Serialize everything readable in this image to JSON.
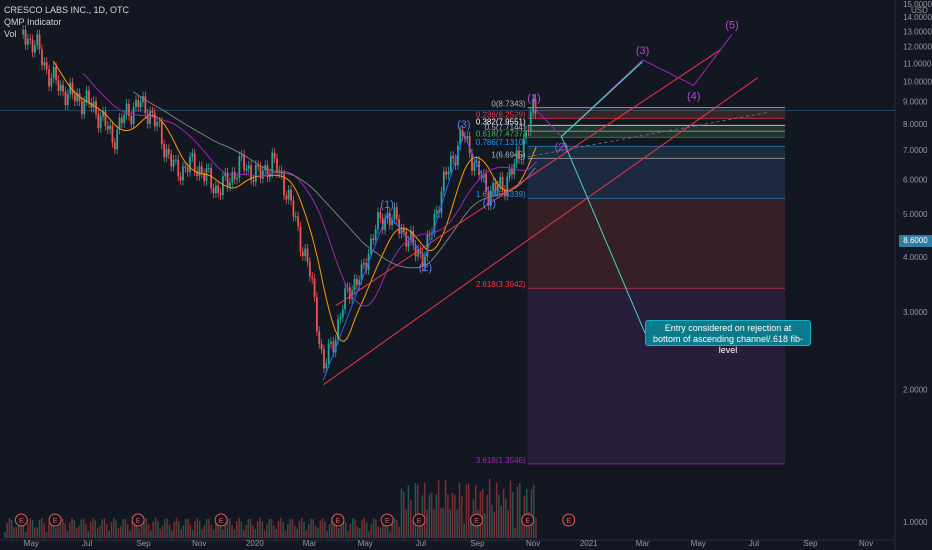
{
  "header": {
    "symbol_line": "CRESCO LABS INC., 1D, OTC",
    "indicator1": "QMP Indicator",
    "indicator2": "Vol"
  },
  "note": {
    "line1": "Entry considered on rejection at",
    "line2": "bottom of ascending channel/.618 fib-level"
  },
  "last_price": "8.6000",
  "colors": {
    "background": "#131722",
    "up_candle": "#26a69a",
    "down_candle": "#ef5350",
    "wave_blue": "#2962ff",
    "wave_purple": "#9c27b0",
    "channel_red": "#f23645",
    "arrow_teal": "#4dd0c8",
    "note_bg": "#0b7a8a"
  },
  "chart_data": {
    "type": "candlestick",
    "y_axis": {
      "scale": "log",
      "ticks": [
        "15.0000",
        "14.0000",
        "13.0000",
        "12.0000",
        "11.0000",
        "10.0000",
        "9.0000",
        "8.0000",
        "7.0000",
        "6.0000",
        "5.0000",
        "4.0000",
        "3.0000",
        "2.0000",
        "1.0000"
      ],
      "tick_values": [
        15,
        14,
        13,
        12,
        11,
        10,
        9,
        8,
        7,
        6,
        5,
        4,
        3,
        2,
        1
      ],
      "unit": "USD"
    },
    "x_axis": {
      "ticks": [
        "May",
        "Jul",
        "Sep",
        "Nov",
        "2020",
        "Mar",
        "May",
        "Jul",
        "Sep",
        "Nov",
        "2021",
        "Mar",
        "May",
        "Jul",
        "Sep",
        "Nov"
      ]
    },
    "price_path": [
      [
        "2019-04-22",
        12.8
      ],
      [
        "2019-05-06",
        12.1
      ],
      [
        "2019-05-20",
        10.4
      ],
      [
        "2019-06-03",
        9.6
      ],
      [
        "2019-06-17",
        9.2
      ],
      [
        "2019-07-01",
        9.0
      ],
      [
        "2019-07-15",
        8.4
      ],
      [
        "2019-07-29",
        7.4
      ],
      [
        "2019-08-12",
        8.4
      ],
      [
        "2019-08-26",
        8.9
      ],
      [
        "2019-09-09",
        8.5
      ],
      [
        "2019-09-23",
        7.2
      ],
      [
        "2019-10-07",
        6.2
      ],
      [
        "2019-10-21",
        6.5
      ],
      [
        "2019-11-04",
        6.3
      ],
      [
        "2019-11-18",
        5.7
      ],
      [
        "2019-12-02",
        5.9
      ],
      [
        "2019-12-16",
        6.5
      ],
      [
        "2020-01-06",
        6.1
      ],
      [
        "2020-01-20",
        6.6
      ],
      [
        "2020-02-03",
        5.8
      ],
      [
        "2020-02-17",
        4.6
      ],
      [
        "2020-03-02",
        3.6
      ],
      [
        "2020-03-16",
        2.2
      ],
      [
        "2020-03-30",
        2.7
      ],
      [
        "2020-04-13",
        3.4
      ],
      [
        "2020-04-27",
        3.6
      ],
      [
        "2020-05-11",
        4.6
      ],
      [
        "2020-05-25",
        5.0
      ],
      [
        "2020-06-08",
        4.7
      ],
      [
        "2020-06-22",
        4.2
      ],
      [
        "2020-07-06",
        4.0
      ],
      [
        "2020-07-20",
        5.3
      ],
      [
        "2020-08-03",
        6.6
      ],
      [
        "2020-08-17",
        7.6
      ],
      [
        "2020-08-31",
        6.3
      ],
      [
        "2020-09-14",
        5.6
      ],
      [
        "2020-09-28",
        5.8
      ],
      [
        "2020-10-12",
        6.4
      ],
      [
        "2020-10-26",
        7.8
      ],
      [
        "2020-11-02",
        8.73
      ],
      [
        "2020-11-06",
        8.6
      ]
    ],
    "fib_levels": [
      {
        "label": "0(8.7343)",
        "value": 8.7343,
        "color": "#b2b5be"
      },
      {
        "label": "0.236(8.2529)",
        "value": 8.2529,
        "color": "#f23645"
      },
      {
        "label": "0.382(7.9551)",
        "value": 7.9551,
        "color": "#ffffff"
      },
      {
        "label": "0.5(7.7144)",
        "value": 7.7144,
        "color": "#b2b5be"
      },
      {
        "label": "0.618(7.4737)",
        "value": 7.4737,
        "color": "#4caf50"
      },
      {
        "label": "0.786(7.1310)",
        "value": 7.131,
        "color": "#2196f3"
      },
      {
        "label": "1(6.6945)",
        "value": 6.6945,
        "color": "#b2b5be"
      },
      {
        "label": "1.618(5.4339)",
        "value": 5.4339,
        "color": "#2196f3"
      },
      {
        "label": "2.618(3.3942)",
        "value": 3.3942,
        "color": "#f23645"
      },
      {
        "label": "3.618(1.3546)",
        "value": 1.3546,
        "color": "#9c27b0"
      }
    ],
    "waves": [
      {
        "label": "(1)",
        "date": "2020-05-25",
        "value": 5.0,
        "color": "#2962ff"
      },
      {
        "label": "(2)",
        "date": "2020-07-06",
        "value": 4.0,
        "color": "#2962ff"
      },
      {
        "label": "(3)",
        "date": "2020-08-17",
        "value": 7.6,
        "color": "#2962ff"
      },
      {
        "label": "(4)",
        "date": "2020-09-14",
        "value": 5.6,
        "color": "#2962ff"
      },
      {
        "label": "(1)",
        "date": "2020-11-02",
        "value": 8.73,
        "color": "#9c27b0"
      },
      {
        "label": "(2)",
        "date": "2020-12-02",
        "value": 7.5,
        "color": "#9c27b0"
      },
      {
        "label": "(3)",
        "date": "2021-03-01",
        "value": 11.2,
        "color": "#9c27b0"
      },
      {
        "label": "(4)",
        "date": "2021-04-26",
        "value": 9.8,
        "color": "#9c27b0"
      },
      {
        "label": "(5)",
        "date": "2021-06-07",
        "value": 12.8,
        "color": "#9c27b0"
      }
    ],
    "earnings_markers": [
      "E",
      "E",
      "E",
      "E",
      "E",
      "E",
      "E",
      "E",
      "E",
      "E"
    ]
  }
}
